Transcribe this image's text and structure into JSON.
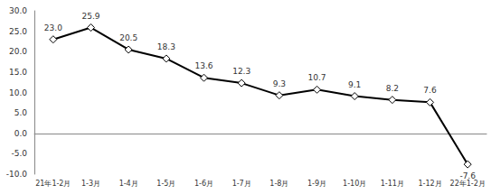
{
  "chart_data": {
    "type": "line",
    "categories": [
      "21年1-2月",
      "1-3月",
      "1-4月",
      "1-5月",
      "1-6月",
      "1-7月",
      "1-8月",
      "1-9月",
      "1-10月",
      "1-11月",
      "1-12月",
      "22年1-2月"
    ],
    "values": [
      23.0,
      25.9,
      20.5,
      18.3,
      13.6,
      12.3,
      9.3,
      10.7,
      9.1,
      8.2,
      7.6,
      -7.6
    ],
    "value_labels": [
      "23.0",
      "25.9",
      "20.5",
      "18.3",
      "13.6",
      "12.3",
      "9.3",
      "10.7",
      "9.1",
      "8.2",
      "7.6",
      "-7.6"
    ],
    "color": "#000000",
    "marker": "diamond",
    "ylim": [
      -10,
      30
    ],
    "yticks": [
      {
        "value": -10,
        "label": "-10.0"
      },
      {
        "value": -5,
        "label": "-5.0"
      },
      {
        "value": 0,
        "label": "0.0"
      },
      {
        "value": 5,
        "label": "5.0"
      },
      {
        "value": 10,
        "label": "10.0"
      },
      {
        "value": 15,
        "label": "15.0"
      },
      {
        "value": 20,
        "label": "20.0"
      },
      {
        "value": 25,
        "label": "25.0"
      },
      {
        "value": 30,
        "label": "30.0"
      }
    ],
    "grid": false,
    "data_labels": true
  }
}
